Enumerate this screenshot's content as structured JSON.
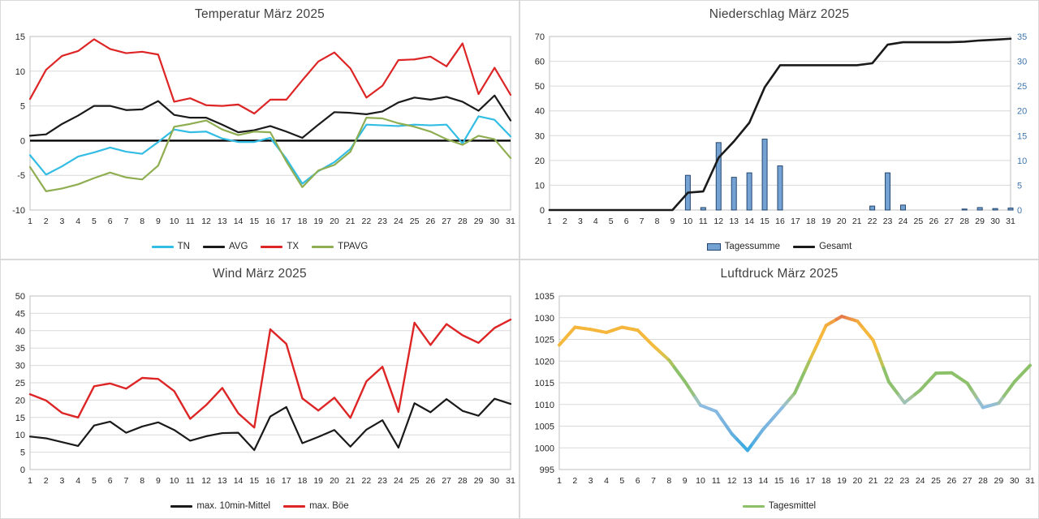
{
  "days": [
    1,
    2,
    3,
    4,
    5,
    6,
    7,
    8,
    9,
    10,
    11,
    12,
    13,
    14,
    15,
    16,
    17,
    18,
    19,
    20,
    21,
    22,
    23,
    24,
    25,
    26,
    27,
    28,
    29,
    30,
    31
  ],
  "colors": {
    "grid": "#d9d9d9",
    "plot_border": "#bfbfbf",
    "axis_text": "#262626",
    "title_text": "#3f3f3f",
    "zero_line": "#000000",
    "right_axis_blue": "#3f76ad"
  },
  "chart_data": [
    {
      "id": "temperature",
      "type": "line",
      "title": "Temperatur März 2025",
      "ylim": [
        -10,
        15
      ],
      "y_step": 5,
      "zero_line": true,
      "legend_position": "bottom",
      "series": [
        {
          "name": "TN",
          "color": "#33bde4",
          "width": 2.2,
          "values": [
            -2.1,
            -4.9,
            -3.7,
            -2.3,
            -1.7,
            -1.0,
            -1.6,
            -1.9,
            -0.2,
            1.6,
            1.2,
            1.3,
            0.3,
            -0.2,
            -0.2,
            0.4,
            -2.6,
            -6.2,
            -4.4,
            -3.1,
            -1.2,
            2.3,
            2.2,
            2.1,
            2.3,
            2.2,
            2.3,
            -0.4,
            3.5,
            3.0,
            0.6
          ]
        },
        {
          "name": "AVG",
          "color": "#1a1a1a",
          "width": 2.2,
          "values": [
            0.7,
            0.9,
            2.4,
            3.6,
            5.0,
            5.0,
            4.4,
            4.5,
            5.7,
            3.7,
            3.3,
            3.3,
            2.3,
            1.2,
            1.5,
            2.1,
            1.3,
            0.4,
            2.3,
            4.1,
            4.0,
            3.8,
            4.2,
            5.5,
            6.2,
            5.9,
            6.3,
            5.6,
            4.3,
            6.5,
            2.9
          ]
        },
        {
          "name": "TX",
          "color": "#dd2526",
          "width": 2.2,
          "values": [
            6.0,
            10.2,
            12.2,
            12.9,
            14.6,
            13.2,
            12.6,
            12.8,
            12.4,
            5.6,
            6.1,
            5.1,
            5.0,
            5.2,
            3.9,
            5.9,
            5.9,
            8.7,
            11.4,
            12.7,
            10.4,
            6.2,
            7.9,
            11.6,
            11.7,
            12.1,
            10.7,
            14.0,
            6.7,
            10.5,
            6.6
          ]
        },
        {
          "name": "TPAVG",
          "color": "#8fae52",
          "width": 2.2,
          "values": [
            -3.8,
            -7.3,
            -6.9,
            -6.3,
            -5.4,
            -4.6,
            -5.3,
            -5.6,
            -3.6,
            2.0,
            2.4,
            2.9,
            1.6,
            0.8,
            1.3,
            1.2,
            -3.0,
            -6.7,
            -4.3,
            -3.5,
            -1.6,
            3.3,
            3.2,
            2.5,
            2.0,
            1.3,
            0.2,
            -0.6,
            0.7,
            0.2,
            -2.5
          ]
        }
      ]
    },
    {
      "id": "precipitation",
      "type": "bar+line",
      "title": "Niederschlag März 2025",
      "ylim_left": [
        0,
        70
      ],
      "y_step_left": 10,
      "ylim_right": [
        0,
        35
      ],
      "y_step_right": 5,
      "right_axis_color": "#3f76ad",
      "legend_position": "bottom",
      "series": [
        {
          "name": "Tagessumme",
          "kind": "bar",
          "axis": "right",
          "fill": "#74a2d2",
          "border": "#24466e",
          "values": [
            0,
            0,
            0,
            0,
            0,
            0,
            0,
            0,
            0,
            7.0,
            0.5,
            13.6,
            6.6,
            7.5,
            14.3,
            8.9,
            0,
            0,
            0,
            0,
            0,
            0.8,
            7.5,
            1.0,
            0,
            0,
            0,
            0.2,
            0.5,
            0.3,
            0.4
          ]
        },
        {
          "name": "Gesamt",
          "kind": "line",
          "axis": "left",
          "color": "#1a1a1a",
          "width": 2.6,
          "values": [
            0,
            0,
            0,
            0,
            0,
            0,
            0,
            0,
            0,
            7.0,
            7.5,
            21.1,
            27.7,
            35.2,
            49.5,
            58.4,
            58.4,
            58.4,
            58.4,
            58.4,
            58.4,
            59.2,
            66.7,
            67.7,
            67.7,
            67.7,
            67.7,
            67.9,
            68.4,
            68.7,
            69.1
          ]
        }
      ]
    },
    {
      "id": "wind",
      "type": "line",
      "title": "Wind März 2025",
      "ylim": [
        0,
        50
      ],
      "y_step": 5,
      "legend_position": "bottom",
      "series": [
        {
          "name": "max. 10min-Mittel",
          "color": "#1a1a1a",
          "width": 2.2,
          "values": [
            9.5,
            9.0,
            7.9,
            6.8,
            12.7,
            13.8,
            10.6,
            12.4,
            13.6,
            11.4,
            8.3,
            9.6,
            10.5,
            10.6,
            5.6,
            15.3,
            18.0,
            7.6,
            9.4,
            11.4,
            6.6,
            11.5,
            14.2,
            6.3,
            19.1,
            16.5,
            20.3,
            16.9,
            15.5,
            20.4,
            18.9
          ]
        },
        {
          "name": "max. Böe",
          "color": "#dd2526",
          "width": 2.4,
          "values": [
            21.7,
            19.9,
            16.3,
            15.0,
            24.0,
            24.8,
            23.3,
            26.4,
            26.1,
            22.6,
            14.6,
            18.6,
            23.5,
            16.2,
            12.1,
            40.4,
            36.2,
            20.5,
            17.0,
            20.7,
            14.9,
            25.4,
            29.6,
            16.6,
            42.3,
            35.9,
            41.9,
            38.7,
            36.5,
            40.8,
            43.2
          ]
        }
      ]
    },
    {
      "id": "pressure",
      "type": "line",
      "title": "Luftdruck März 2025",
      "ylim": [
        995,
        1035
      ],
      "y_step": 5,
      "legend_position": "bottom",
      "color_stops": [
        [
          999.0,
          "#2fa9e1"
        ],
        [
          1004.0,
          "#72b1de"
        ],
        [
          1009.5,
          "#8dbce2"
        ],
        [
          1011.5,
          "#a7c4a2"
        ],
        [
          1013.0,
          "#8ec06e"
        ],
        [
          1018.5,
          "#8cc168"
        ],
        [
          1020.5,
          "#d4c34e"
        ],
        [
          1023.0,
          "#f4bc3f"
        ],
        [
          1028.0,
          "#f5b53c"
        ],
        [
          1029.5,
          "#ef9a44"
        ],
        [
          1030.4,
          "#e26a4d"
        ]
      ],
      "series": [
        {
          "name": "Tagesmittel",
          "color": "#8cc168",
          "width": 4,
          "color_by_value": true,
          "values": [
            1023.7,
            1027.8,
            1027.3,
            1026.6,
            1027.8,
            1027.1,
            1023.5,
            1020.2,
            1015.3,
            1009.8,
            1008.4,
            1003.2,
            999.4,
            1004.3,
            1008.4,
            1012.6,
            1020.5,
            1028.2,
            1030.3,
            1029.2,
            1024.8,
            1015.2,
            1010.4,
            1013.3,
            1017.2,
            1017.3,
            1014.9,
            1009.3,
            1010.3,
            1015.2,
            1019.0
          ]
        }
      ]
    }
  ]
}
